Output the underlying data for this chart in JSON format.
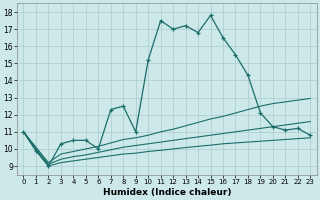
{
  "title": "",
  "xlabel": "Humidex (Indice chaleur)",
  "bg_color": "#cce8e8",
  "grid_color": "#aacccc",
  "line_color": "#1a6e6a",
  "xlim": [
    -0.5,
    23.5
  ],
  "ylim": [
    8.5,
    18.5
  ],
  "xticks": [
    0,
    1,
    2,
    3,
    4,
    5,
    6,
    7,
    8,
    9,
    10,
    11,
    12,
    13,
    14,
    15,
    16,
    17,
    18,
    19,
    20,
    21,
    22,
    23
  ],
  "yticks": [
    9,
    10,
    11,
    12,
    13,
    14,
    15,
    16,
    17,
    18
  ],
  "series_main": [
    11.0,
    9.9,
    9.0,
    10.3,
    10.5,
    10.5,
    10.0,
    12.3,
    12.5,
    11.0,
    15.2,
    17.5,
    17.0,
    17.2,
    16.8,
    17.8,
    16.5,
    15.5,
    14.3,
    12.1,
    11.3,
    11.1,
    11.2,
    10.8
  ],
  "series_lines": [
    [
      11.0,
      10.1,
      9.2,
      9.7,
      9.85,
      10.0,
      10.15,
      10.35,
      10.55,
      10.65,
      10.8,
      11.0,
      11.15,
      11.35,
      11.55,
      11.75,
      11.9,
      12.1,
      12.3,
      12.5,
      12.65,
      12.75,
      12.85,
      12.95
    ],
    [
      11.0,
      10.0,
      9.1,
      9.4,
      9.55,
      9.65,
      9.8,
      9.95,
      10.1,
      10.2,
      10.3,
      10.4,
      10.5,
      10.6,
      10.7,
      10.8,
      10.9,
      11.0,
      11.1,
      11.2,
      11.3,
      11.4,
      11.5,
      11.6
    ],
    [
      11.0,
      9.9,
      9.0,
      9.2,
      9.3,
      9.4,
      9.5,
      9.6,
      9.7,
      9.75,
      9.85,
      9.92,
      10.0,
      10.08,
      10.15,
      10.22,
      10.3,
      10.35,
      10.4,
      10.45,
      10.5,
      10.55,
      10.6,
      10.65
    ]
  ]
}
